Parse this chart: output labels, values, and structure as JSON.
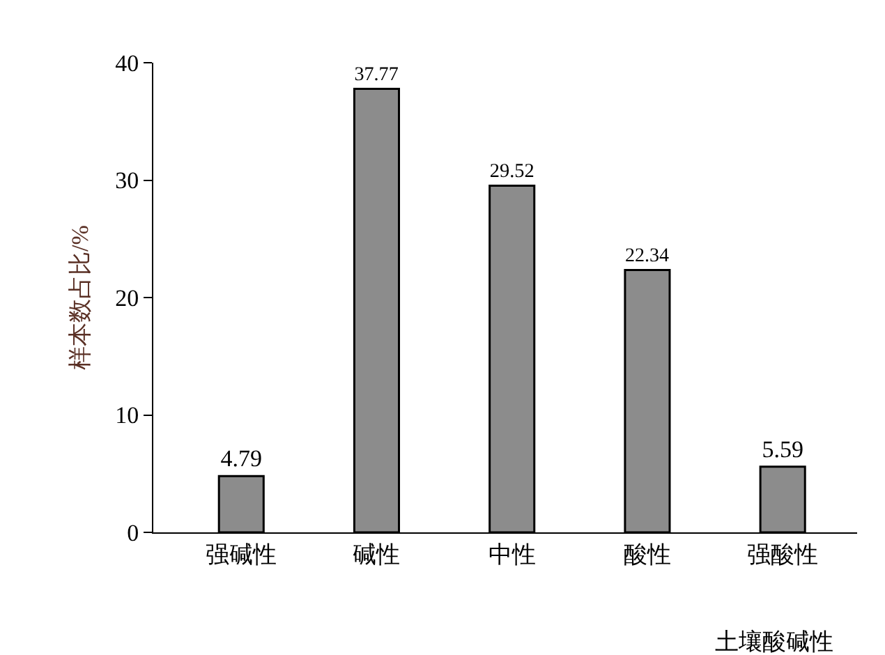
{
  "chart_data": {
    "type": "bar",
    "xlabel": "土壤酸碱性",
    "ylabel": "样本数占比/%",
    "categories": [
      "强碱性",
      "碱性",
      "中性",
      "酸性",
      "强酸性"
    ],
    "values": [
      4.79,
      37.77,
      29.52,
      22.34,
      5.59
    ],
    "color": "#8c8c8c",
    "ylim": [
      0,
      40
    ],
    "yticks": [
      0,
      10,
      20,
      30,
      40
    ],
    "legend": false,
    "data_labels": true
  }
}
